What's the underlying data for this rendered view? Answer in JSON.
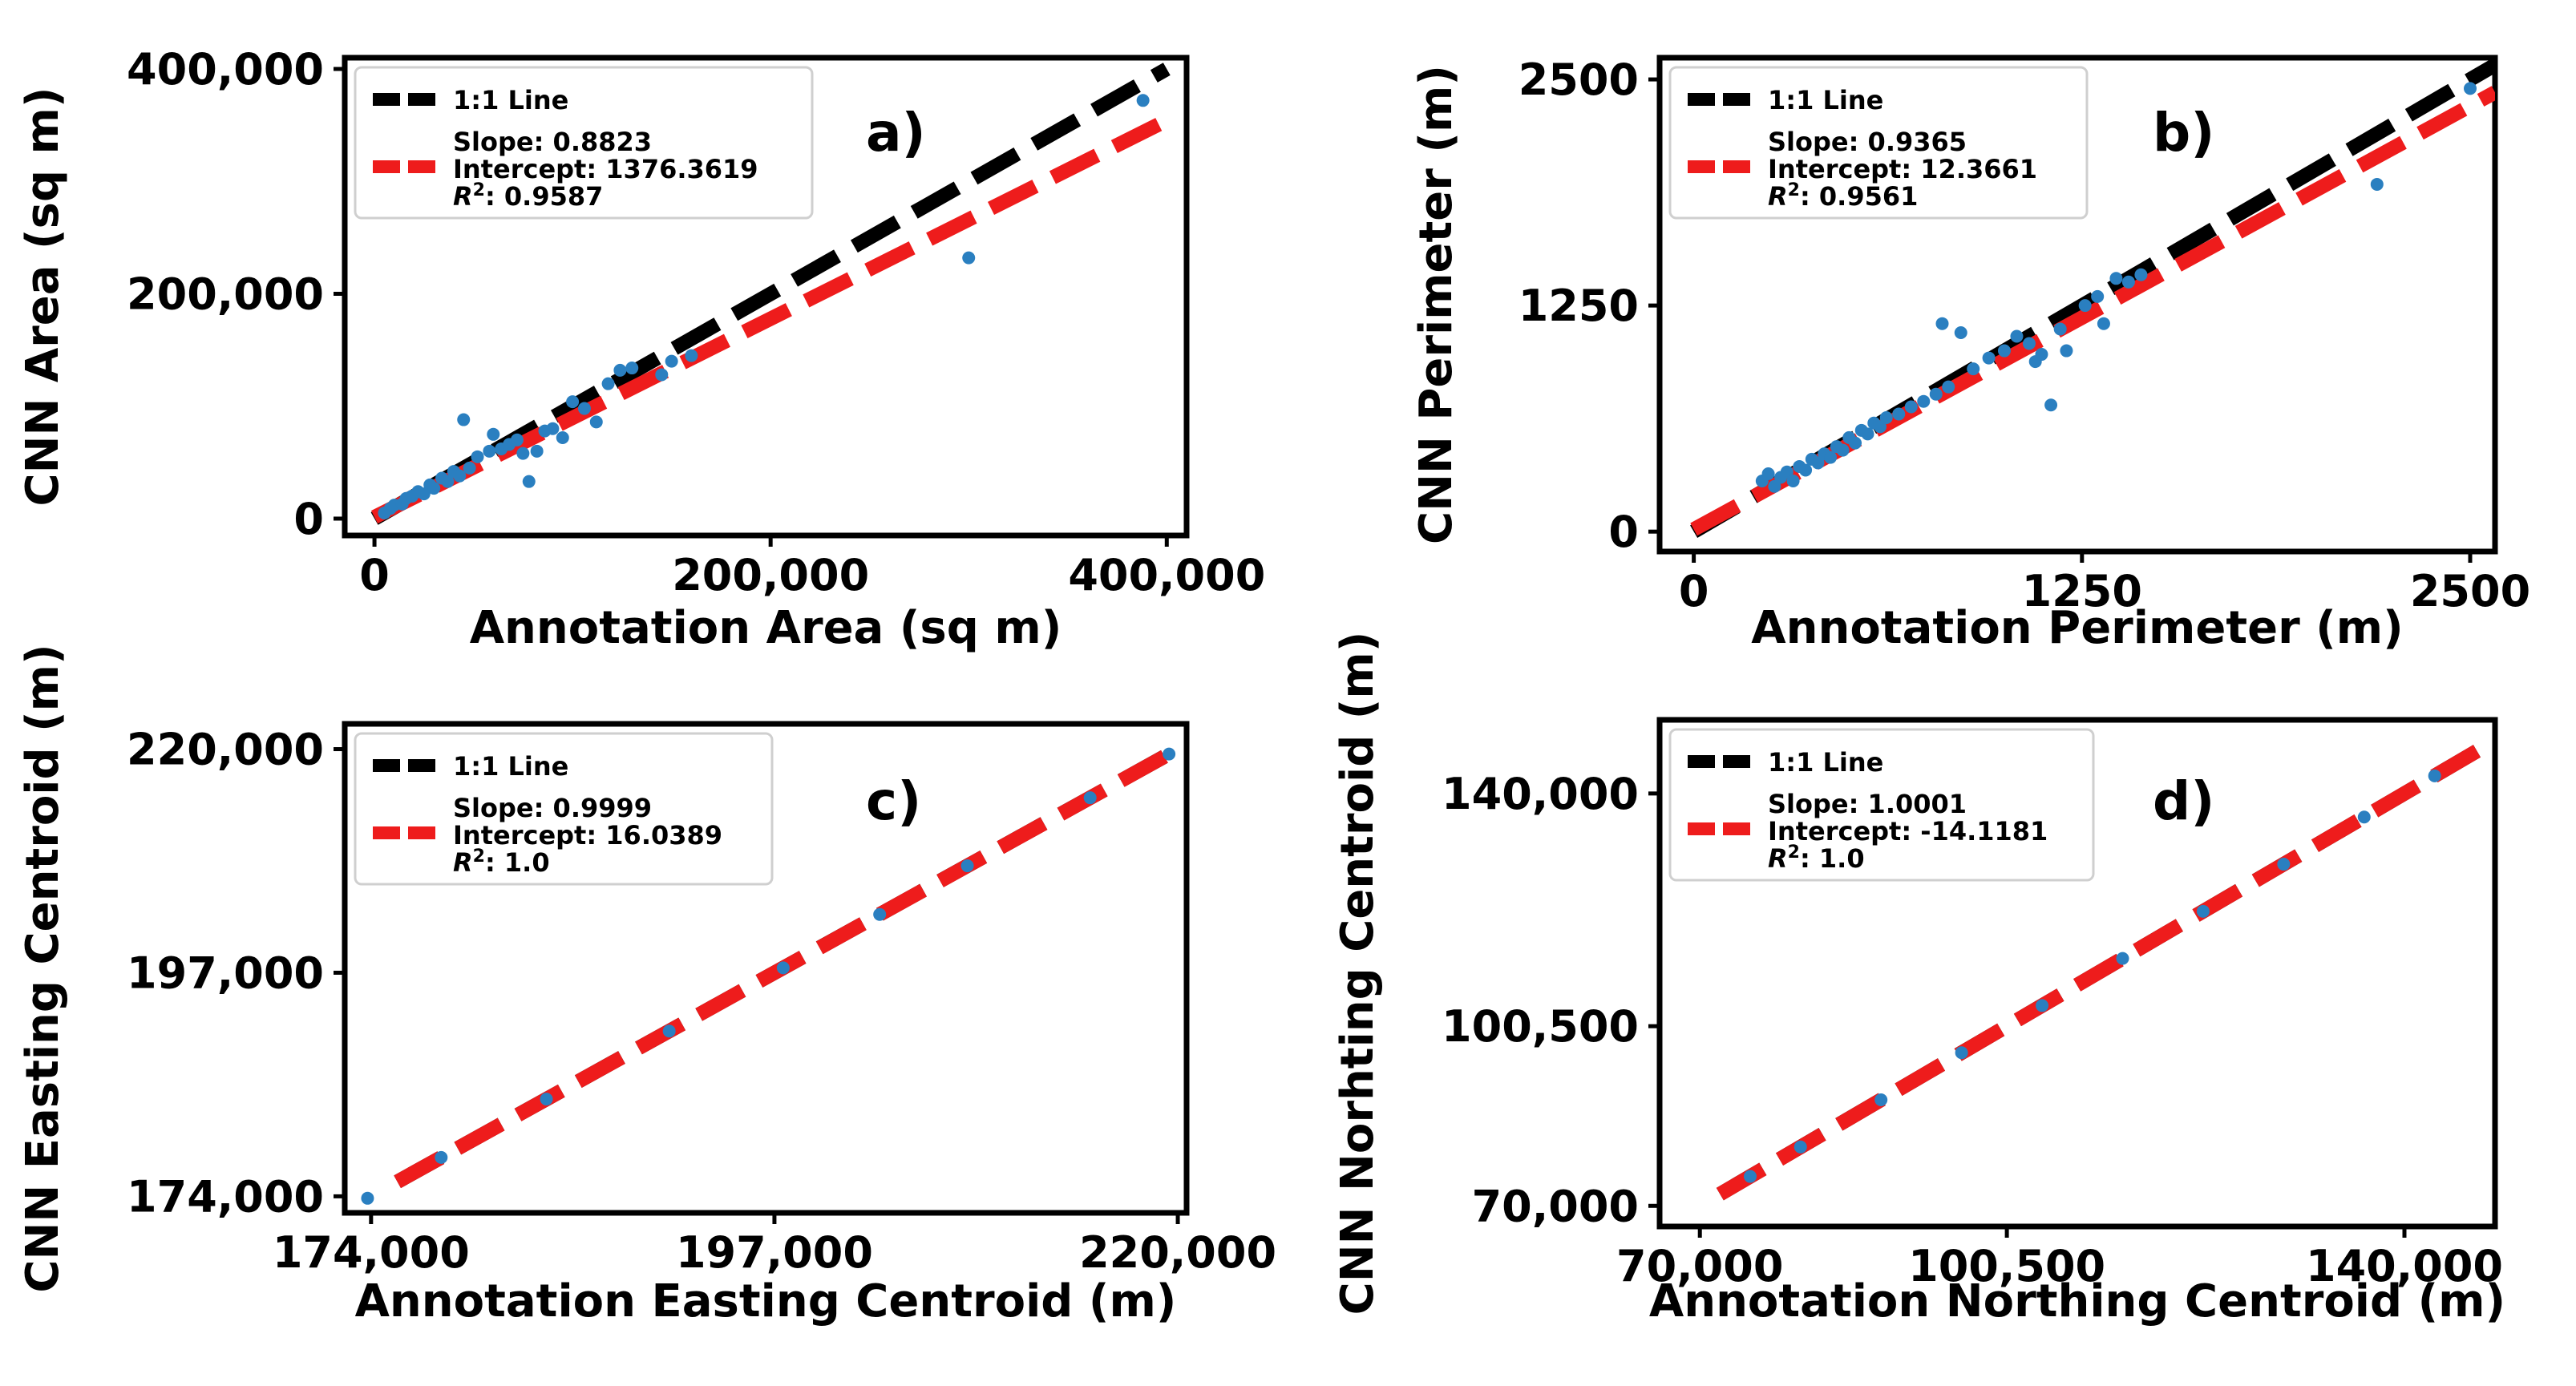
{
  "colors": {
    "ideal": "#000000",
    "fit": "#ee1c1c",
    "points": "#2a7fc0"
  },
  "chart_data": [
    {
      "type": "scatter",
      "panel_label": "a)",
      "xlabel": "Annotation Area (sq m)",
      "ylabel": "CNN Area (sq m)",
      "xlim": [
        -15000,
        410000
      ],
      "ylim": [
        -15000,
        410000
      ],
      "xticks": [
        0,
        200000,
        400000
      ],
      "xtick_labels": [
        "0",
        "200,000",
        "400,000"
      ],
      "yticks": [
        0,
        200000,
        400000
      ],
      "ytick_labels": [
        "0",
        "200,000",
        "400,000"
      ],
      "legend": {
        "ideal_label": "1:1 Line",
        "slope": "Slope: 0.8823",
        "intercept": "Intercept: 1376.3619",
        "r2_prefix": "R",
        "r2_value": "2",
        "r2_rest": ": 0.9587"
      },
      "fit": {
        "slope": 0.8823,
        "intercept": 1376.3619
      },
      "line_range": [
        0,
        400000
      ],
      "points": [
        [
          5000,
          5000
        ],
        [
          8000,
          9000
        ],
        [
          10000,
          12000
        ],
        [
          14000,
          13000
        ],
        [
          16000,
          18000
        ],
        [
          19000,
          20000
        ],
        [
          22000,
          24000
        ],
        [
          25000,
          22000
        ],
        [
          28000,
          30000
        ],
        [
          30000,
          27000
        ],
        [
          34000,
          36000
        ],
        [
          37000,
          33000
        ],
        [
          40000,
          42000
        ],
        [
          43000,
          38000
        ],
        [
          45000,
          88000
        ],
        [
          48000,
          45000
        ],
        [
          52000,
          55000
        ],
        [
          58000,
          60000
        ],
        [
          60000,
          75000
        ],
        [
          64000,
          62000
        ],
        [
          68000,
          66000
        ],
        [
          72000,
          70000
        ],
        [
          75000,
          58000
        ],
        [
          78000,
          33000
        ],
        [
          82000,
          60000
        ],
        [
          86000,
          78000
        ],
        [
          90000,
          80000
        ],
        [
          95000,
          72000
        ],
        [
          100000,
          104000
        ],
        [
          106000,
          98000
        ],
        [
          112000,
          86000
        ],
        [
          118000,
          120000
        ],
        [
          124000,
          132000
        ],
        [
          130000,
          134000
        ],
        [
          145000,
          128000
        ],
        [
          150000,
          140000
        ],
        [
          160000,
          145000
        ],
        [
          300000,
          232000
        ],
        [
          388000,
          372000
        ]
      ]
    },
    {
      "type": "scatter",
      "panel_label": "b)",
      "xlabel": "Annotation Perimeter (m)",
      "ylabel": "CNN Perimeter (m)",
      "xlim": [
        -110,
        2580
      ],
      "ylim": [
        -110,
        2620
      ],
      "xticks": [
        0,
        1250,
        2500
      ],
      "xtick_labels": [
        "0",
        "1250",
        "2500"
      ],
      "yticks": [
        0,
        1250,
        2500
      ],
      "ytick_labels": [
        "0",
        "1250",
        "2500"
      ],
      "legend": {
        "ideal_label": "1:1 Line",
        "slope": "Slope: 0.9365",
        "intercept": "Intercept: 12.3661",
        "r2_prefix": "R",
        "r2_value": "2",
        "r2_rest": ": 0.9561"
      },
      "fit": {
        "slope": 0.9365,
        "intercept": 12.3661
      },
      "line_range": [
        0,
        2580
      ],
      "points": [
        [
          220,
          280
        ],
        [
          240,
          320
        ],
        [
          260,
          250
        ],
        [
          280,
          300
        ],
        [
          300,
          330
        ],
        [
          320,
          280
        ],
        [
          340,
          360
        ],
        [
          360,
          340
        ],
        [
          380,
          400
        ],
        [
          400,
          380
        ],
        [
          420,
          430
        ],
        [
          440,
          410
        ],
        [
          460,
          470
        ],
        [
          480,
          450
        ],
        [
          500,
          520
        ],
        [
          520,
          490
        ],
        [
          540,
          560
        ],
        [
          560,
          540
        ],
        [
          580,
          600
        ],
        [
          600,
          580
        ],
        [
          620,
          630
        ],
        [
          660,
          650
        ],
        [
          700,
          690
        ],
        [
          740,
          720
        ],
        [
          780,
          760
        ],
        [
          800,
          1150
        ],
        [
          820,
          800
        ],
        [
          860,
          1100
        ],
        [
          900,
          900
        ],
        [
          950,
          960
        ],
        [
          1000,
          1000
        ],
        [
          1040,
          1080
        ],
        [
          1080,
          1040
        ],
        [
          1100,
          940
        ],
        [
          1120,
          980
        ],
        [
          1150,
          700
        ],
        [
          1180,
          1120
        ],
        [
          1200,
          1000
        ],
        [
          1260,
          1250
        ],
        [
          1300,
          1300
        ],
        [
          1320,
          1150
        ],
        [
          1360,
          1400
        ],
        [
          1400,
          1380
        ],
        [
          1440,
          1420
        ],
        [
          2200,
          1920
        ],
        [
          2500,
          2450
        ]
      ]
    },
    {
      "type": "scatter",
      "panel_label": "c)",
      "xlabel": "Annotation Easting Centroid (m)",
      "ylabel": "CNN Easting Centroid (m)",
      "xlim": [
        172500,
        220500
      ],
      "ylim": [
        172300,
        222600
      ],
      "xticks": [
        174000,
        197000,
        220000
      ],
      "xtick_labels": [
        "174,000",
        "197,000",
        "220,000"
      ],
      "yticks": [
        174000,
        197000,
        220000
      ],
      "ytick_labels": [
        "174,000",
        "197,000",
        "220,000"
      ],
      "legend": {
        "ideal_label": "1:1 Line",
        "slope": "Slope: 0.9999",
        "intercept": "Intercept: 16.0389",
        "r2_prefix": "R",
        "r2_value": "2",
        "r2_rest": ": 1.0"
      },
      "fit": {
        "slope": 0.9999,
        "intercept": 16.0389
      },
      "line_range": [
        175500,
        220000
      ],
      "points": [
        [
          173800,
          173800
        ],
        [
          178000,
          178000
        ],
        [
          184000,
          184000
        ],
        [
          191000,
          191000
        ],
        [
          197500,
          197500
        ],
        [
          203000,
          203000
        ],
        [
          208000,
          208000
        ],
        [
          215000,
          215000
        ],
        [
          219500,
          219500
        ]
      ]
    },
    {
      "type": "scatter",
      "panel_label": "d)",
      "xlabel": "Annotation Northing Centroid (m)",
      "ylabel": "CNN Norhting Centroid (m)",
      "xlim": [
        66000,
        149000
      ],
      "ylim": [
        66500,
        152500
      ],
      "xticks": [
        70000,
        100500,
        140000
      ],
      "xtick_labels": [
        "70,000",
        "100,500",
        "140,000"
      ],
      "yticks": [
        70000,
        100500,
        140000
      ],
      "ytick_labels": [
        "70,000",
        "100,500",
        "140,000"
      ],
      "legend": {
        "ideal_label": "1:1 Line",
        "slope": "Slope: 1.0001",
        "intercept": "Intercept: -14.1181",
        "r2_prefix": "R",
        "r2_value": "2",
        "r2_rest": ": 1.0"
      },
      "fit": {
        "slope": 1.0001,
        "intercept": -14.1181
      },
      "line_range": [
        72000,
        147500
      ],
      "points": [
        [
          75000,
          75000
        ],
        [
          80000,
          80000
        ],
        [
          88000,
          88000
        ],
        [
          96000,
          96000
        ],
        [
          104000,
          104000
        ],
        [
          112000,
          112000
        ],
        [
          120000,
          120000
        ],
        [
          128000,
          128000
        ],
        [
          136000,
          136000
        ],
        [
          143000,
          143000
        ]
      ]
    }
  ]
}
